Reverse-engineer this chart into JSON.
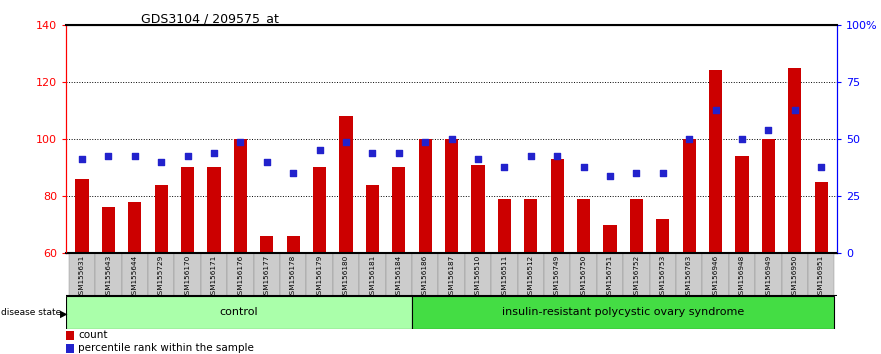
{
  "title": "GDS3104 / 209575_at",
  "samples": [
    "GSM155631",
    "GSM155643",
    "GSM155644",
    "GSM155729",
    "GSM156170",
    "GSM156171",
    "GSM156176",
    "GSM156177",
    "GSM156178",
    "GSM156179",
    "GSM156180",
    "GSM156181",
    "GSM156184",
    "GSM156186",
    "GSM156187",
    "GSM156510",
    "GSM156511",
    "GSM156512",
    "GSM156749",
    "GSM156750",
    "GSM156751",
    "GSM156752",
    "GSM156753",
    "GSM156763",
    "GSM156946",
    "GSM156948",
    "GSM156949",
    "GSM156950",
    "GSM156951"
  ],
  "counts": [
    86,
    76,
    78,
    84,
    90,
    90,
    100,
    66,
    66,
    90,
    108,
    84,
    90,
    100,
    100,
    91,
    79,
    79,
    93,
    79,
    70,
    79,
    72,
    100,
    124,
    94,
    100,
    125,
    85
  ],
  "percentile_ranks": [
    93,
    94,
    94,
    92,
    94,
    95,
    99,
    92,
    88,
    96,
    99,
    95,
    95,
    99,
    100,
    93,
    90,
    94,
    94,
    90,
    87,
    88,
    88,
    100,
    110,
    100,
    103,
    110,
    90
  ],
  "group_control_count": 13,
  "ylim_left": [
    60,
    140
  ],
  "ylim_right": [
    0,
    100
  ],
  "yticks_left": [
    60,
    80,
    100,
    120,
    140
  ],
  "yticks_right": [
    0,
    25,
    50,
    75,
    100
  ],
  "right_tick_labels": [
    "0",
    "25",
    "50",
    "75",
    "100%"
  ],
  "bar_color": "#cc0000",
  "dot_color": "#2222cc",
  "bar_bottom": 60,
  "group1_color": "#aaffaa",
  "group2_color": "#44dd44"
}
